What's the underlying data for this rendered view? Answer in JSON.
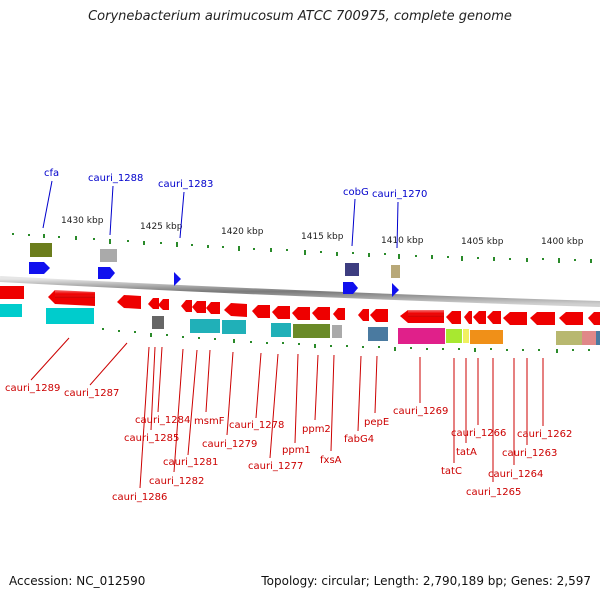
{
  "title": "Corynebacterium aurimucosum ATCC 700975, complete genome",
  "footer": {
    "accession": "Accession: NC_012590",
    "topology": "Topology: circular; Length: 2,790,189 bp; Genes: 2,597"
  },
  "scale_labels": [
    "1430 kbp",
    "1425 kbp",
    "1420 kbp",
    "1415 kbp",
    "1410 kbp",
    "1405 kbp",
    "1400 kbp"
  ],
  "top_labels": [
    "cfa",
    "cauri_1288",
    "cauri_1283",
    "cobG",
    "cauri_1270"
  ],
  "bottom_labels": [
    "cauri_1289",
    "cauri_1287",
    "cauri_1284",
    "cauri_1285",
    "cauri_1286",
    "msmF",
    "cauri_1281",
    "cauri_1282",
    "cauri_1279",
    "cauri_1278",
    "cauri_1277",
    "ppm1",
    "ppm2",
    "fxsA",
    "fabG4",
    "pepE",
    "cauri_1269",
    "cauri_1266",
    "tatA",
    "tatC",
    "cauri_1265",
    "cauri_1264",
    "cauri_1263",
    "cauri_1262"
  ],
  "colors": {
    "gene_red": "#ee0000",
    "cyan": "#00cccc",
    "olive": "#6b7d1c",
    "gray": "#aaaaaa",
    "blue": "#1010ee",
    "navy": "#3d3d80",
    "tan": "#b8a878",
    "teal": "#20a0a8",
    "green": "#6a8a28",
    "steel": "#4a7aa0",
    "magenta": "#e0208a",
    "lime": "#a8e830",
    "orange": "#f09018",
    "khaki": "#b8b870",
    "pink": "#e08888",
    "label_red": "#cc0000",
    "label_blue": "#0000cc",
    "tick_green": "#2a8a2a"
  }
}
